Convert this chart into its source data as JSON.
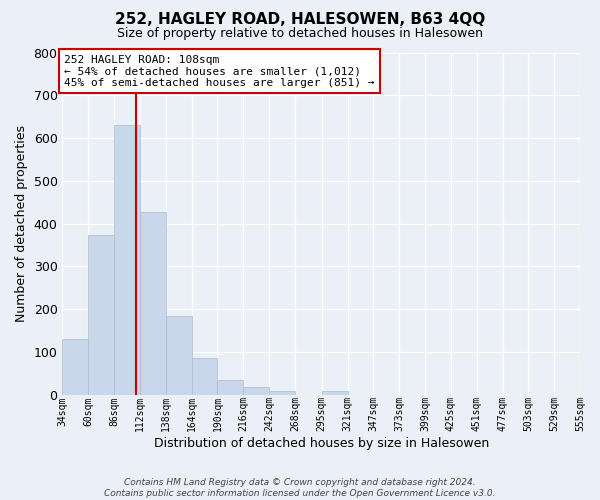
{
  "title": "252, HAGLEY ROAD, HALESOWEN, B63 4QQ",
  "subtitle": "Size of property relative to detached houses in Halesowen",
  "xlabel": "Distribution of detached houses by size in Halesowen",
  "ylabel": "Number of detached properties",
  "bar_color": "#c8d8ea",
  "bar_edge_color": "#aabccc",
  "background_color": "#eaf0f6",
  "grid_color": "#ffffff",
  "bin_edges": [
    34,
    60,
    86,
    112,
    138,
    164,
    190,
    216,
    242,
    268,
    295,
    321,
    347,
    373,
    399,
    425,
    451,
    477,
    503,
    529,
    555
  ],
  "bar_heights": [
    130,
    373,
    630,
    428,
    185,
    85,
    35,
    18,
    10,
    0,
    10,
    0,
    0,
    0,
    0,
    0,
    0,
    0,
    0,
    0
  ],
  "vline_x": 108,
  "vline_color": "#cc0000",
  "ylim": [
    0,
    800
  ],
  "yticks": [
    0,
    100,
    200,
    300,
    400,
    500,
    600,
    700,
    800
  ],
  "annotation_title": "252 HAGLEY ROAD: 108sqm",
  "annotation_line1": "← 54% of detached houses are smaller (1,012)",
  "annotation_line2": "45% of semi-detached houses are larger (851) →",
  "annotation_box_color": "#ffffff",
  "annotation_box_edge": "#cc0000",
  "footer_line1": "Contains HM Land Registry data © Crown copyright and database right 2024.",
  "footer_line2": "Contains public sector information licensed under the Open Government Licence v3.0.",
  "tick_labels": [
    "34sqm",
    "60sqm",
    "86sqm",
    "112sqm",
    "138sqm",
    "164sqm",
    "190sqm",
    "216sqm",
    "242sqm",
    "268sqm",
    "295sqm",
    "321sqm",
    "347sqm",
    "373sqm",
    "399sqm",
    "425sqm",
    "451sqm",
    "477sqm",
    "503sqm",
    "529sqm",
    "555sqm"
  ]
}
